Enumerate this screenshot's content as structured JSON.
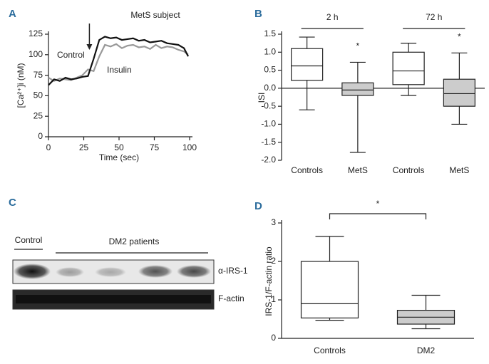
{
  "chart_data": [
    {
      "type": "line",
      "panel_label": "A",
      "title": "MetS subject",
      "xlabel": "Time (sec)",
      "ylabel": "[Ca²⁺]i (nM)",
      "annotations": [
        "Control",
        "Insulin"
      ],
      "arrow_x": 29,
      "x": [
        0,
        4,
        8,
        12,
        16,
        20,
        24,
        28,
        32,
        36,
        40,
        44,
        48,
        52,
        56,
        60,
        64,
        68,
        72,
        76,
        80,
        84,
        88,
        92,
        96,
        99
      ],
      "series": [
        {
          "name": "Control",
          "color": "#111111",
          "values": [
            63,
            70,
            68,
            72,
            70,
            71,
            73,
            74,
            95,
            118,
            122,
            120,
            121,
            118,
            119,
            120,
            117,
            118,
            115,
            116,
            117,
            114,
            113,
            112,
            108,
            98
          ]
        },
        {
          "name": "Insulin",
          "color": "#999999",
          "values": [
            72,
            68,
            71,
            70,
            69,
            72,
            75,
            82,
            80,
            98,
            112,
            110,
            113,
            108,
            111,
            112,
            109,
            110,
            107,
            112,
            108,
            110,
            109,
            106,
            104,
            100
          ]
        }
      ],
      "xlim": [
        0,
        100
      ],
      "xticks": [
        0,
        25,
        50,
        75,
        100
      ],
      "ylim": [
        0,
        125
      ],
      "yticks": [
        0,
        25,
        50,
        75,
        100,
        125
      ]
    },
    {
      "type": "box",
      "panel_label": "B",
      "ylabel": "ISI",
      "categories": [
        "Controls",
        "MetS",
        "Controls",
        "MetS"
      ],
      "group_labels": [
        "2 h",
        "72 h"
      ],
      "significance": [
        "*",
        "*"
      ],
      "min": [
        -0.6,
        -1.78,
        -0.2,
        -1.0
      ],
      "q1": [
        0.22,
        -0.2,
        0.1,
        -0.5
      ],
      "median": [
        0.62,
        -0.05,
        0.48,
        -0.15
      ],
      "q3": [
        1.1,
        0.15,
        1.0,
        0.25
      ],
      "max": [
        1.42,
        0.72,
        1.25,
        0.98
      ],
      "colors": [
        "#ffffff",
        "#cccccc",
        "#ffffff",
        "#cccccc"
      ],
      "reference_line": 0,
      "ylim": [
        -2.0,
        1.5
      ],
      "yticks": [
        1.5,
        {
          "value": 1.0,
          "label": "1.0"
        },
        0.5,
        {
          "value": 0,
          "label": "0.0"
        },
        -0.5,
        {
          "value": -1.0,
          "label": "-1.0"
        },
        -1.5,
        {
          "value": -2.0,
          "label": "-2.0"
        }
      ]
    },
    {
      "type": "box",
      "panel_label": "D",
      "ylabel": "IRS-1/F-actin ratio",
      "categories": [
        "Controls",
        "DM2"
      ],
      "significance": [
        "*"
      ],
      "min": [
        0.47,
        0.25
      ],
      "q1": [
        0.53,
        0.37
      ],
      "median": [
        0.9,
        0.55
      ],
      "q3": [
        2.0,
        0.73
      ],
      "max": [
        2.65,
        1.12
      ],
      "colors": [
        "#ffffff",
        "#cccccc"
      ],
      "ylim": [
        0,
        3
      ],
      "yticks": [
        0,
        1,
        2,
        3
      ]
    }
  ],
  "blot": {
    "panel_label": "C",
    "group_labels": [
      "Control",
      "DM2 patients"
    ],
    "bands": [
      "α-IRS-1",
      "F-actin"
    ]
  }
}
